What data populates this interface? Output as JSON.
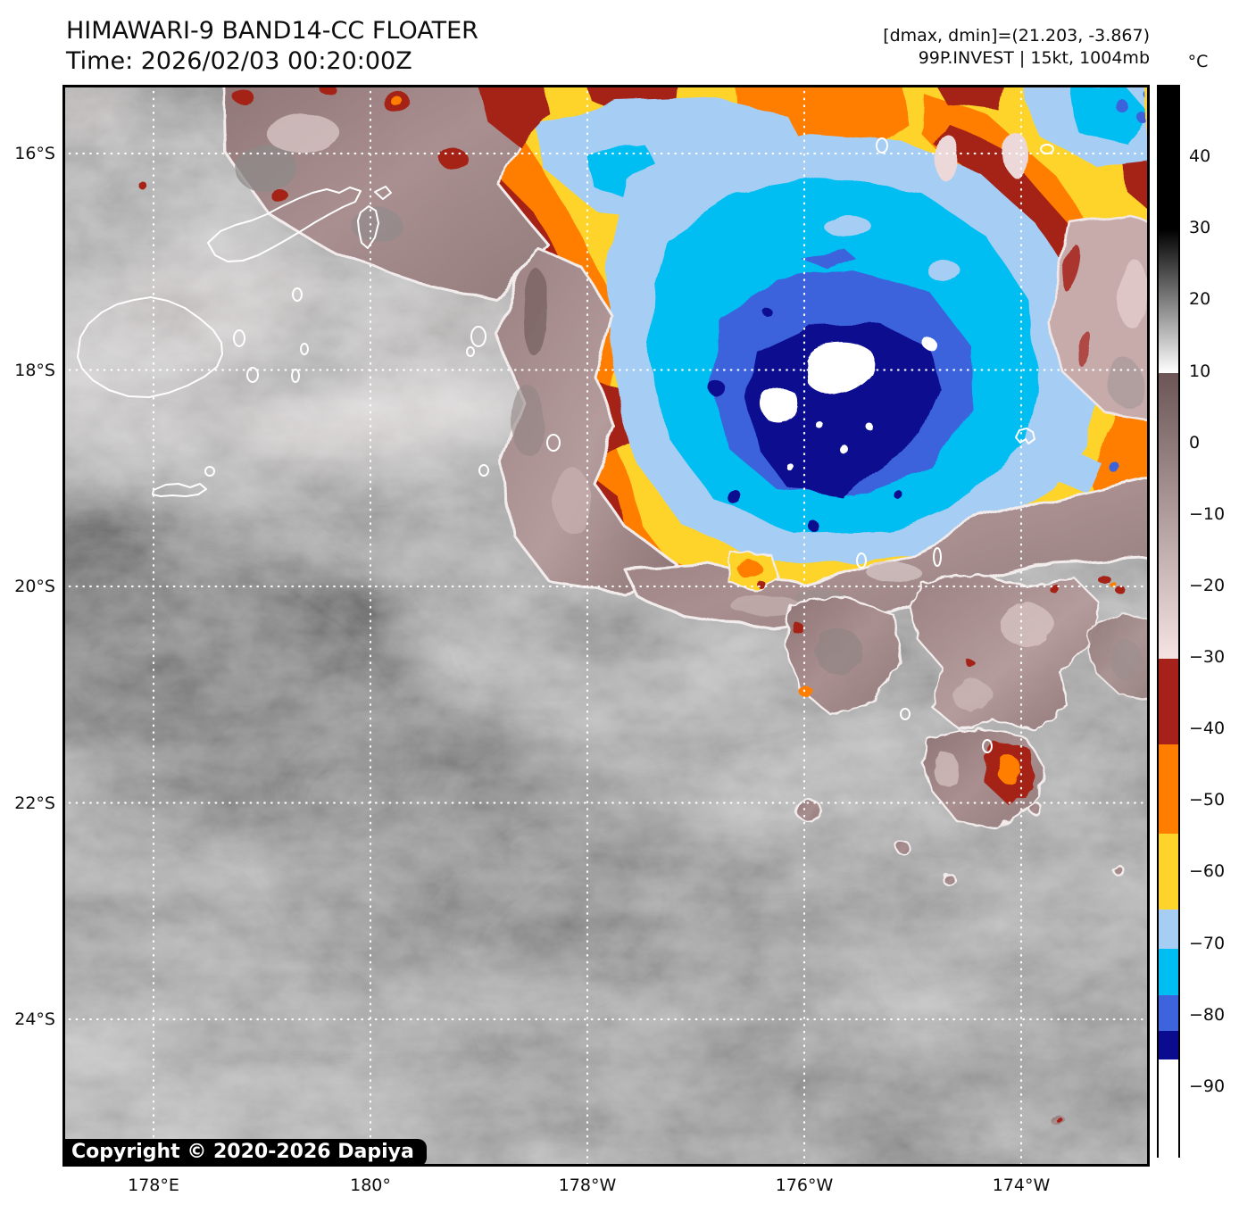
{
  "header": {
    "title": "HIMAWARI-9 BAND14-CC FLOATER",
    "time": "Time: 2026/02/03 00:20:00Z"
  },
  "annotations": {
    "range_line": "[dmax, dmin]=(21.203, -3.867)",
    "storm_line": "99P.INVEST | 15kt, 1004mb"
  },
  "copyright": "Copyright © 2020-2026 Dapiya",
  "palette": {
    "yellow": "#FFD42A",
    "orange": "#FF7E00",
    "darkred": "#A52119",
    "lightblue": "#A6CEF4",
    "cyan": "#00BDF2",
    "royal": "#3D64DC",
    "navy": "#0B0B8F",
    "cloudwhite": "#FFFFFF",
    "mauve": "#9B8282",
    "graybase": "#7E7E7E"
  },
  "chart_data": {
    "type": "heatmap",
    "title": "HIMAWARI-9 BAND14-CC FLOATER",
    "subtitle": "Time: 2026/02/03 00:20:00Z",
    "annotations": [
      "[dmax, dmin]=(21.203, -3.867)",
      "99P.INVEST | 15kt, 1004mb"
    ],
    "x_axis": {
      "label": "longitude",
      "ticks": [
        "178°E",
        "180°",
        "178°W",
        "176°W",
        "174°W"
      ]
    },
    "y_axis": {
      "label": "latitude",
      "ticks": [
        "16°S",
        "18°S",
        "20°S",
        "22°S",
        "24°S"
      ]
    },
    "grid": true,
    "colorbar": {
      "unit": "°C",
      "range_est": [
        50,
        -100
      ],
      "ticks": [
        {
          "v": 40,
          "label": "40"
        },
        {
          "v": 30,
          "label": "30"
        },
        {
          "v": 20,
          "label": "20"
        },
        {
          "v": 10,
          "label": "10"
        },
        {
          "v": 0,
          "label": "0"
        },
        {
          "v": -10,
          "label": "−10"
        },
        {
          "v": -20,
          "label": "−20"
        },
        {
          "v": -30,
          "label": "−30"
        },
        {
          "v": -40,
          "label": "−40"
        },
        {
          "v": -50,
          "label": "−50"
        },
        {
          "v": -60,
          "label": "−60"
        },
        {
          "v": -70,
          "label": "−70"
        },
        {
          "v": -80,
          "label": "−80"
        },
        {
          "v": -90,
          "label": "−90"
        }
      ],
      "segments": [
        {
          "from": 50,
          "to": 30,
          "color": "#000000"
        },
        {
          "from": 30,
          "to": 10,
          "gradient": [
            "#000000",
            "#ffffff"
          ]
        },
        {
          "from": 10,
          "to": -30,
          "gradient": [
            "#6B5556",
            "#F6E4E4"
          ]
        },
        {
          "from": -30,
          "to": -42,
          "color": "#A52119"
        },
        {
          "from": -42,
          "to": -54.5,
          "color": "#FF7E00"
        },
        {
          "from": -54.5,
          "to": -65,
          "color": "#FFD42A"
        },
        {
          "from": -65,
          "to": -70.5,
          "color": "#A6CEF4"
        },
        {
          "from": -70.5,
          "to": -77,
          "color": "#00BDF2"
        },
        {
          "from": -77,
          "to": -82,
          "color": "#3D64DC"
        },
        {
          "from": -82,
          "to": -86,
          "color": "#0B0B8F"
        },
        {
          "from": -86,
          "to": -100,
          "color": "#FFFFFF"
        }
      ]
    },
    "features": [
      "deep convective system centered near 18S 176W (cloud tops below -80C, overshooting tops below -86C shown white)",
      "warm gray cloud field over Fiji region (southwest half of scene)",
      "mid-level mauve cloud band -0 to -30C wrapping west and south of the convection",
      "scattered convective cells southeast of the main system"
    ]
  }
}
